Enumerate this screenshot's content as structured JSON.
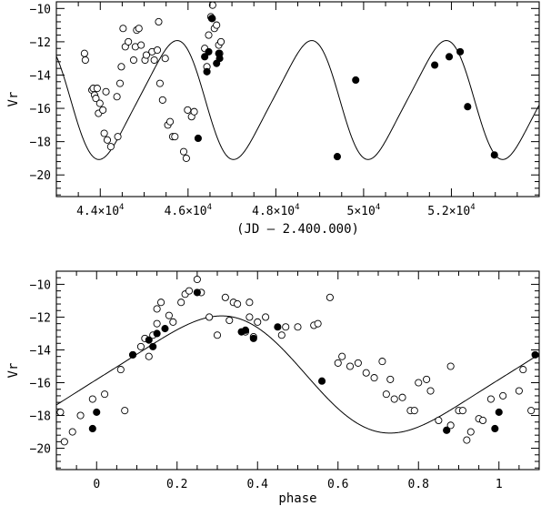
{
  "chart_data": [
    {
      "type": "scatter",
      "title": "",
      "xlabel": "(JD – 2.400.000)",
      "ylabel": "Vr",
      "xlim": [
        43000,
        54000
      ],
      "ylim": [
        -9.6,
        -21.3
      ],
      "x_ticks": [
        44000,
        46000,
        48000,
        50000,
        52000
      ],
      "x_tick_labels": [
        {
          "mantissa": "4.4×10",
          "exp": "4"
        },
        {
          "mantissa": "4.6×10",
          "exp": "4"
        },
        {
          "mantissa": "4.8×10",
          "exp": "4"
        },
        {
          "mantissa": "5×10",
          "exp": "4"
        },
        {
          "mantissa": "5.2×10",
          "exp": "4"
        }
      ],
      "y_ticks": [
        -10,
        -12,
        -14,
        -16,
        -18,
        -20
      ],
      "y_tick_labels": [
        "−10",
        "−12",
        "−14",
        "−16",
        "−18",
        "−20"
      ],
      "grid": false,
      "model_curve": {
        "period": 3066,
        "epoch": 44800,
        "mean": -15.5,
        "amplitude": 3.44,
        "phase_shift": 0.02
      },
      "series": [
        {
          "marker": "open-circle",
          "points": [
            [
              43640,
              -12.7
            ],
            [
              43660,
              -13.1
            ],
            [
              43810,
              -14.9
            ],
            [
              43840,
              -14.8
            ],
            [
              43870,
              -15.2
            ],
            [
              43900,
              -15.4
            ],
            [
              43930,
              -14.8
            ],
            [
              43960,
              -16.3
            ],
            [
              43990,
              -15.7
            ],
            [
              44060,
              -16.1
            ],
            [
              44090,
              -17.5
            ],
            [
              44130,
              -15.0
            ],
            [
              44160,
              -17.9
            ],
            [
              44240,
              -18.3
            ],
            [
              44400,
              -17.7
            ],
            [
              44380,
              -15.3
            ],
            [
              44450,
              -14.5
            ],
            [
              44480,
              -13.5
            ],
            [
              44520,
              -11.2
            ],
            [
              44570,
              -12.3
            ],
            [
              44640,
              -12.0
            ],
            [
              44760,
              -13.1
            ],
            [
              44800,
              -12.3
            ],
            [
              44830,
              -11.3
            ],
            [
              44880,
              -11.2
            ],
            [
              44930,
              -12.2
            ],
            [
              45020,
              -13.1
            ],
            [
              45050,
              -12.8
            ],
            [
              45180,
              -12.6
            ],
            [
              45230,
              -13.1
            ],
            [
              45300,
              -12.5
            ],
            [
              45330,
              -10.8
            ],
            [
              45360,
              -14.5
            ],
            [
              45420,
              -15.5
            ],
            [
              45480,
              -13.0
            ],
            [
              45540,
              -17.0
            ],
            [
              45590,
              -16.8
            ],
            [
              45650,
              -17.7
            ],
            [
              45700,
              -17.7
            ],
            [
              45900,
              -18.6
            ],
            [
              45960,
              -19.0
            ],
            [
              45990,
              -16.1
            ],
            [
              46080,
              -16.5
            ],
            [
              46140,
              -16.2
            ],
            [
              46380,
              -12.4
            ],
            [
              46430,
              -13.5
            ],
            [
              46470,
              -11.6
            ],
            [
              46520,
              -10.5
            ],
            [
              46540,
              -10.6
            ],
            [
              46560,
              -9.8
            ],
            [
              46600,
              -11.2
            ],
            [
              46650,
              -11.0
            ],
            [
              46700,
              -12.2
            ],
            [
              46720,
              -12.7
            ],
            [
              46750,
              -12.0
            ]
          ]
        },
        {
          "marker": "filled-circle",
          "points": [
            [
              46230,
              -17.8
            ],
            [
              46380,
              -12.9
            ],
            [
              46430,
              -13.8
            ],
            [
              46470,
              -12.6
            ],
            [
              46550,
              -10.6
            ],
            [
              46650,
              -13.3
            ],
            [
              46700,
              -12.7
            ],
            [
              46720,
              -13.0
            ],
            [
              49400,
              -18.9
            ],
            [
              49820,
              -14.3
            ],
            [
              51620,
              -13.4
            ],
            [
              51950,
              -12.9
            ],
            [
              52200,
              -12.6
            ],
            [
              52370,
              -15.9
            ],
            [
              52980,
              -18.8
            ]
          ]
        }
      ]
    },
    {
      "type": "scatter",
      "title": "",
      "xlabel": "phase",
      "ylabel": "Vr",
      "xlim": [
        -0.1,
        1.1
      ],
      "ylim": [
        -9.2,
        -21.3
      ],
      "x_ticks": [
        0,
        0.2,
        0.4,
        0.6,
        0.8,
        1
      ],
      "x_tick_labels": [
        "0",
        "0.2",
        "0.4",
        "0.6",
        "0.8",
        "1"
      ],
      "y_ticks": [
        -10,
        -12,
        -14,
        -16,
        -18,
        -20
      ],
      "y_tick_labels": [
        "−10",
        "−12",
        "−14",
        "−16",
        "−18",
        "−20"
      ],
      "grid": false,
      "model_curve": {
        "period": 1,
        "epoch": 0,
        "mean": -15.5,
        "amplitude": 3.44,
        "phase_shift": 0.02
      },
      "series": [
        {
          "marker": "open-circle",
          "points": [
            [
              -0.09,
              -17.8
            ],
            [
              -0.08,
              -19.6
            ],
            [
              -0.06,
              -19.0
            ],
            [
              -0.04,
              -18.0
            ],
            [
              -0.01,
              -17.0
            ],
            [
              0.02,
              -16.7
            ],
            [
              0.06,
              -15.2
            ],
            [
              0.07,
              -17.7
            ],
            [
              0.09,
              -14.3
            ],
            [
              0.11,
              -13.8
            ],
            [
              0.12,
              -13.3
            ],
            [
              0.13,
              -14.4
            ],
            [
              0.14,
              -13.1
            ],
            [
              0.15,
              -11.5
            ],
            [
              0.15,
              -12.4
            ],
            [
              0.16,
              -11.1
            ],
            [
              0.18,
              -11.9
            ],
            [
              0.19,
              -12.3
            ],
            [
              0.21,
              -11.1
            ],
            [
              0.22,
              -10.6
            ],
            [
              0.23,
              -10.4
            ],
            [
              0.25,
              -9.7
            ],
            [
              0.26,
              -10.5
            ],
            [
              0.28,
              -12.0
            ],
            [
              0.3,
              -13.1
            ],
            [
              0.32,
              -10.8
            ],
            [
              0.33,
              -12.2
            ],
            [
              0.34,
              -11.1
            ],
            [
              0.35,
              -11.2
            ],
            [
              0.37,
              -12.9
            ],
            [
              0.38,
              -11.1
            ],
            [
              0.38,
              -12.0
            ],
            [
              0.39,
              -13.2
            ],
            [
              0.4,
              -12.3
            ],
            [
              0.42,
              -12.0
            ],
            [
              0.46,
              -13.1
            ],
            [
              0.47,
              -12.6
            ],
            [
              0.5,
              -12.6
            ],
            [
              0.54,
              -12.5
            ],
            [
              0.55,
              -12.4
            ],
            [
              0.58,
              -10.8
            ],
            [
              0.6,
              -14.8
            ],
            [
              0.61,
              -14.4
            ],
            [
              0.63,
              -15.0
            ],
            [
              0.65,
              -14.8
            ],
            [
              0.67,
              -15.4
            ],
            [
              0.69,
              -15.7
            ],
            [
              0.71,
              -14.7
            ],
            [
              0.72,
              -16.7
            ],
            [
              0.73,
              -15.8
            ],
            [
              0.74,
              -17.0
            ],
            [
              0.76,
              -16.9
            ],
            [
              0.78,
              -17.7
            ],
            [
              0.79,
              -17.7
            ],
            [
              0.8,
              -16.0
            ],
            [
              0.82,
              -15.8
            ],
            [
              0.83,
              -16.5
            ],
            [
              0.85,
              -18.3
            ],
            [
              0.87,
              -18.9
            ],
            [
              0.88,
              -18.6
            ],
            [
              0.88,
              -15.0
            ],
            [
              0.9,
              -17.7
            ],
            [
              0.91,
              -17.7
            ],
            [
              0.92,
              -19.5
            ],
            [
              0.93,
              -19.0
            ],
            [
              0.95,
              -18.2
            ],
            [
              0.96,
              -18.3
            ],
            [
              0.98,
              -17.0
            ],
            [
              1.01,
              -16.8
            ],
            [
              1.05,
              -16.5
            ],
            [
              1.06,
              -15.2
            ],
            [
              1.08,
              -17.7
            ]
          ]
        },
        {
          "marker": "filled-circle",
          "points": [
            [
              -0.01,
              -18.8
            ],
            [
              0.0,
              -17.8
            ],
            [
              0.09,
              -14.3
            ],
            [
              0.13,
              -13.4
            ],
            [
              0.14,
              -13.8
            ],
            [
              0.15,
              -13.0
            ],
            [
              0.17,
              -12.7
            ],
            [
              0.25,
              -10.5
            ],
            [
              0.36,
              -12.9
            ],
            [
              0.37,
              -12.8
            ],
            [
              0.39,
              -13.3
            ],
            [
              0.45,
              -12.6
            ],
            [
              0.56,
              -15.9
            ],
            [
              0.87,
              -18.9
            ],
            [
              0.99,
              -18.8
            ],
            [
              1.0,
              -17.8
            ],
            [
              1.09,
              -14.3
            ]
          ]
        }
      ]
    }
  ]
}
